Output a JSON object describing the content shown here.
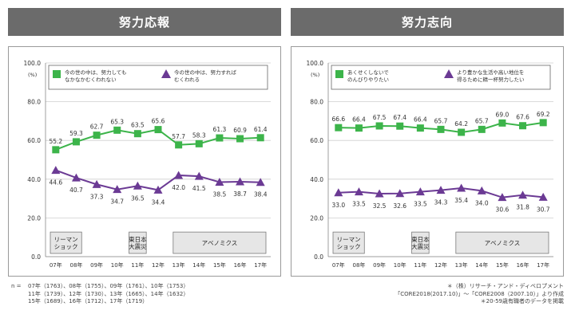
{
  "chart_data": [
    {
      "type": "line",
      "title": "努力応報",
      "y_unit": "(%)",
      "ylim": [
        0,
        100
      ],
      "yticks": [
        "100.0",
        "80.0",
        "60.0",
        "40.0",
        "20.0",
        "0.0"
      ],
      "categories": [
        "07年",
        "08年",
        "09年",
        "10年",
        "11年",
        "12年",
        "13年",
        "14年",
        "15年",
        "16年",
        "17年"
      ],
      "series": [
        {
          "name_lines": [
            "今の世の中は、努力しても",
            "なかなかむくわれない"
          ],
          "marker": "square",
          "color": "#3cb44a",
          "values": [
            55.2,
            59.3,
            62.7,
            65.3,
            63.5,
            65.6,
            57.7,
            58.3,
            61.3,
            60.9,
            61.4
          ],
          "labels": [
            "55.2",
            "59.3",
            "62.7",
            "65.3",
            "63.5",
            "65.6",
            "57.7",
            "58.3",
            "61.3",
            "60.9",
            "61.4"
          ]
        },
        {
          "name_lines": [
            "今の世の中は、努力すれば",
            "むくわれる"
          ],
          "marker": "triangle",
          "color": "#6b3a94",
          "values": [
            44.6,
            40.7,
            37.3,
            34.7,
            36.5,
            34.4,
            42.0,
            41.5,
            38.5,
            38.7,
            38.4
          ],
          "labels": [
            "44.6",
            "40.7",
            "37.3",
            "34.7",
            "36.5",
            "34.4",
            "42.0",
            "41.5",
            "38.5",
            "38.7",
            "38.4"
          ]
        }
      ],
      "periods": [
        {
          "lines": [
            "リーマン",
            "ショック"
          ],
          "start": 0,
          "end": 1
        },
        {
          "lines": [
            "東日本",
            "大震災"
          ],
          "start": 4,
          "end": 4
        },
        {
          "lines": [
            "アベノミクス"
          ],
          "start": 6,
          "end": 10
        }
      ]
    },
    {
      "type": "line",
      "title": "努力志向",
      "y_unit": "(%)",
      "ylim": [
        0,
        100
      ],
      "yticks": [
        "100.0",
        "80.0",
        "60.0",
        "40.0",
        "20.0",
        "0.0"
      ],
      "categories": [
        "07年",
        "08年",
        "09年",
        "10年",
        "11年",
        "12年",
        "13年",
        "14年",
        "15年",
        "16年",
        "17年"
      ],
      "series": [
        {
          "name_lines": [
            "あくせくしないで",
            "のんびりやりたい"
          ],
          "marker": "square",
          "color": "#3cb44a",
          "values": [
            66.6,
            66.4,
            67.5,
            67.4,
            66.4,
            65.7,
            64.2,
            65.7,
            69.0,
            67.6,
            69.2
          ],
          "labels": [
            "66.6",
            "66.4",
            "67.5",
            "67.4",
            "66.4",
            "65.7",
            "64.2",
            "65.7",
            "69.0",
            "67.6",
            "69.2"
          ]
        },
        {
          "name_lines": [
            "より豊かな生活や高い地位を",
            "得るために精一杯努力したい"
          ],
          "marker": "triangle",
          "color": "#6b3a94",
          "values": [
            33.0,
            33.5,
            32.5,
            32.6,
            33.5,
            34.3,
            35.4,
            34.0,
            30.6,
            31.8,
            30.7
          ],
          "labels": [
            "33.0",
            "33.5",
            "32.5",
            "32.6",
            "33.5",
            "34.3",
            "35.4",
            "34.0",
            "30.6",
            "31.8",
            "30.7"
          ]
        }
      ],
      "periods": [
        {
          "lines": [
            "リーマン",
            "ショック"
          ],
          "start": 0,
          "end": 1
        },
        {
          "lines": [
            "東日本",
            "大震災"
          ],
          "start": 4,
          "end": 4
        },
        {
          "lines": [
            "アベノミクス"
          ],
          "start": 6,
          "end": 10
        }
      ]
    }
  ],
  "footnote_left": {
    "label": "n =",
    "lines": [
      "07年（1763）、08年（1755）、09年（1761）、10年（1753）",
      "11年（1739）、12年（1730）、13年（1665）、14年（1632）",
      "15年（1689）、16年（1712）、17年（1719）"
    ]
  },
  "footnote_right": {
    "lines": [
      "＊（株）リサーチ・アンド・ディベロプメント",
      "「CORE2018(2017.10)」～「CORE2008（2007.10）」より作成",
      "＊20-59歳有職者のデータを掲載"
    ]
  }
}
